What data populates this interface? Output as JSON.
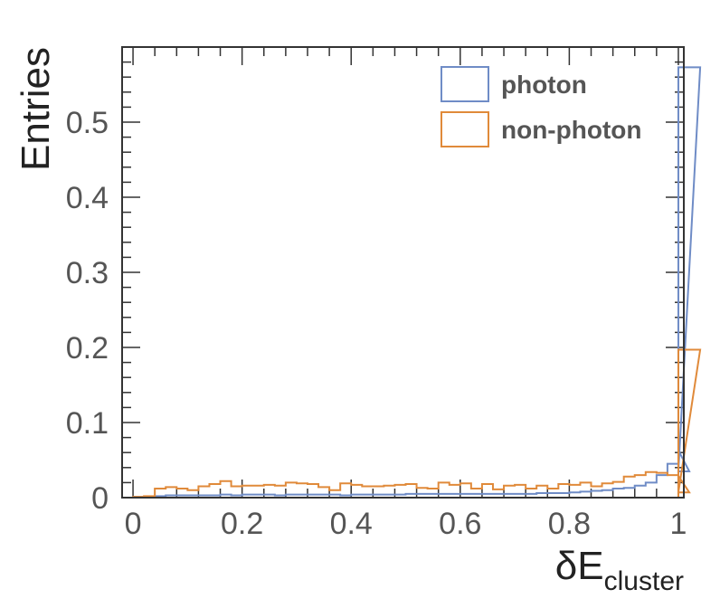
{
  "chart_data": {
    "type": "histogram",
    "xlabel": "δE",
    "xlabel_sub": "cluster",
    "ylabel": "Entries",
    "xlim": [
      -0.02,
      1.01
    ],
    "ylim": [
      0,
      0.6
    ],
    "x_ticks": [
      "0",
      "0.2",
      "0.4",
      "0.6",
      "0.8",
      "1"
    ],
    "y_ticks": [
      "0",
      "0.1",
      "0.2",
      "0.3",
      "0.4",
      "0.5"
    ],
    "legend_position": "top-right",
    "bin_edges_start": 0.0,
    "bin_width": 0.02,
    "series": [
      {
        "name": "photon",
        "color": "#6f8cc6",
        "values": [
          0.001,
          0.001,
          0.002,
          0.003,
          0.003,
          0.003,
          0.003,
          0.003,
          0.004,
          0.003,
          0.004,
          0.004,
          0.004,
          0.003,
          0.004,
          0.004,
          0.004,
          0.004,
          0.004,
          0.003,
          0.004,
          0.004,
          0.004,
          0.004,
          0.004,
          0.005,
          0.005,
          0.005,
          0.005,
          0.005,
          0.005,
          0.005,
          0.005,
          0.005,
          0.005,
          0.005,
          0.005,
          0.006,
          0.006,
          0.006,
          0.007,
          0.008,
          0.009,
          0.01,
          0.012,
          0.013,
          0.016,
          0.02,
          0.03,
          0.045,
          0.063,
          0.035,
          0.573
        ]
      },
      {
        "name": "non-photon",
        "color": "#e08a3a",
        "values": [
          0.001,
          0.002,
          0.012,
          0.014,
          0.012,
          0.01,
          0.015,
          0.018,
          0.022,
          0.015,
          0.016,
          0.016,
          0.017,
          0.016,
          0.02,
          0.019,
          0.018,
          0.014,
          0.01,
          0.019,
          0.017,
          0.015,
          0.015,
          0.016,
          0.017,
          0.018,
          0.013,
          0.012,
          0.02,
          0.017,
          0.019,
          0.012,
          0.018,
          0.011,
          0.016,
          0.017,
          0.012,
          0.016,
          0.012,
          0.018,
          0.017,
          0.02,
          0.015,
          0.019,
          0.021,
          0.028,
          0.03,
          0.034,
          0.033,
          0.03,
          0.029,
          0.007,
          0.197
        ]
      }
    ]
  }
}
